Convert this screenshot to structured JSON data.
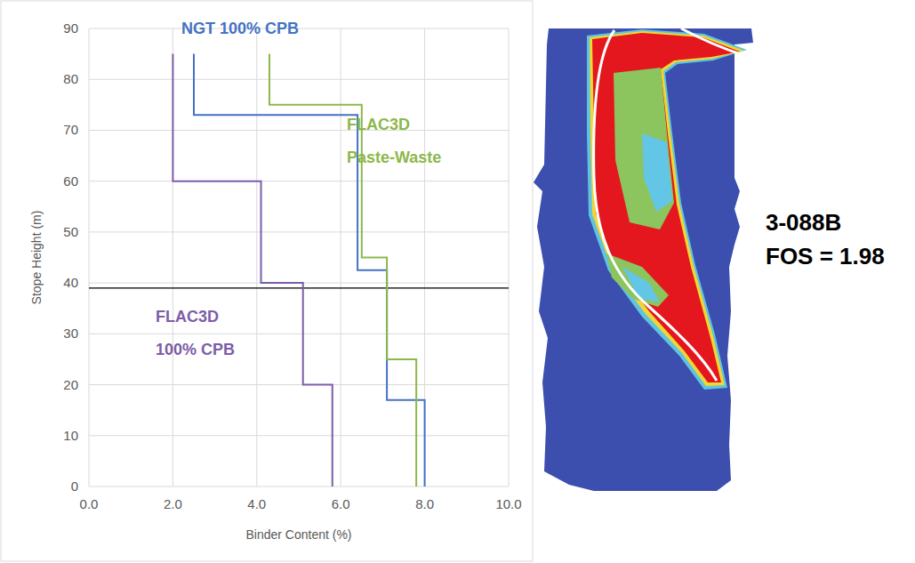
{
  "chart_data": {
    "type": "line",
    "x_label": "Binder Content (%)",
    "y_label": "Stope Height (m)",
    "xlim": [
      0,
      10
    ],
    "ylim": [
      0,
      90
    ],
    "xticks": [
      {
        "value": 0,
        "label": "0.0"
      },
      {
        "value": 2,
        "label": "2.0"
      },
      {
        "value": 4,
        "label": "4.0"
      },
      {
        "value": 6,
        "label": "6.0"
      },
      {
        "value": 8,
        "label": "8.0"
      },
      {
        "value": 10,
        "label": "10.0"
      }
    ],
    "yticks": [
      0,
      10,
      20,
      30,
      40,
      50,
      60,
      70,
      80,
      90
    ],
    "grid": true,
    "hlines": [
      39
    ],
    "series": [
      {
        "name": "NGT 100% CPB",
        "color": "#4472c4",
        "x": [
          2.5,
          2.5,
          6.4,
          6.4,
          7.1,
          7.1,
          8.0,
          8.0
        ],
        "values": [
          85,
          73,
          73,
          42.5,
          42.5,
          17,
          17,
          0
        ]
      },
      {
        "name": "FLAC3D Paste-Waste",
        "color": "#8db84a",
        "x": [
          4.3,
          4.3,
          6.5,
          6.5,
          7.1,
          7.1,
          7.8,
          7.8
        ],
        "values": [
          85,
          75,
          75,
          45,
          45,
          25,
          25,
          0
        ]
      },
      {
        "name": "FLAC3D 100% CPB",
        "color": "#7c5da8",
        "x": [
          2.0,
          2.0,
          4.1,
          4.1,
          5.1,
          5.1,
          5.8,
          5.8
        ],
        "values": [
          85,
          60,
          60,
          40,
          40,
          20,
          20,
          0
        ]
      }
    ]
  },
  "stope_model": {
    "title": "3-088B",
    "fos_label": "FOS = 1.98"
  }
}
